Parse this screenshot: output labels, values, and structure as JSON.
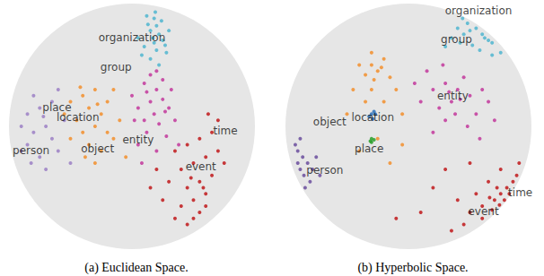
{
  "chart_data": [
    {
      "type": "scatter",
      "title": "(a) Euclidean Space.",
      "xlim": [
        -1,
        1
      ],
      "ylim": [
        -1,
        1
      ],
      "tick_labels": false,
      "grid": false,
      "series": [
        {
          "color": "#4fb5cf",
          "values": [
            [
              0.12,
              0.9
            ],
            [
              0.18,
              0.88
            ],
            [
              0.2,
              0.82
            ],
            [
              0.15,
              0.78
            ],
            [
              0.22,
              0.75
            ],
            [
              0.25,
              0.7
            ],
            [
              0.18,
              0.68
            ],
            [
              0.1,
              0.65
            ],
            [
              0.2,
              0.62
            ],
            [
              0.28,
              0.6
            ],
            [
              0.15,
              0.55
            ],
            [
              0.22,
              0.5
            ],
            [
              0.08,
              0.58
            ],
            [
              0.3,
              0.78
            ],
            [
              0.05,
              0.72
            ],
            [
              0.24,
              0.86
            ],
            [
              0.13,
              0.83
            ],
            [
              0.27,
              0.66
            ],
            [
              0.17,
              0.72
            ],
            [
              0.19,
              0.93
            ]
          ]
        },
        {
          "color": "#c2379b",
          "values": [
            [
              0.1,
              0.35
            ],
            [
              0.2,
              0.3
            ],
            [
              0.15,
              0.2
            ],
            [
              0.25,
              0.22
            ],
            [
              0.05,
              0.15
            ],
            [
              0.18,
              0.1
            ],
            [
              0.3,
              0.15
            ],
            [
              0.1,
              0.05
            ],
            [
              0.22,
              0.02
            ],
            [
              0.35,
              0.05
            ],
            [
              0.12,
              -0.05
            ],
            [
              0.28,
              -0.08
            ],
            [
              0.05,
              -0.15
            ],
            [
              0.2,
              -0.2
            ],
            [
              0.15,
              0.42
            ],
            [
              0.32,
              0.3
            ],
            [
              0.0,
              0.25
            ],
            [
              0.38,
              -0.15
            ],
            [
              0.25,
              0.38
            ],
            [
              0.08,
              -0.3
            ],
            [
              0.2,
              0.45
            ],
            [
              0.12,
              0.28
            ],
            [
              0.27,
              0.12
            ],
            [
              0.02,
              0.05
            ]
          ]
        },
        {
          "color": "#c0181a",
          "values": [
            [
              0.35,
              -0.2
            ],
            [
              0.45,
              -0.15
            ],
            [
              0.55,
              -0.1
            ],
            [
              0.65,
              -0.05
            ],
            [
              0.7,
              0.05
            ],
            [
              0.4,
              -0.35
            ],
            [
              0.5,
              -0.3
            ],
            [
              0.6,
              -0.25
            ],
            [
              0.7,
              -0.2
            ],
            [
              0.3,
              -0.45
            ],
            [
              0.45,
              -0.5
            ],
            [
              0.55,
              -0.45
            ],
            [
              0.65,
              -0.4
            ],
            [
              0.5,
              -0.6
            ],
            [
              0.6,
              -0.55
            ],
            [
              0.4,
              -0.65
            ],
            [
              0.55,
              -0.7
            ],
            [
              0.45,
              -0.8
            ],
            [
              0.35,
              -0.75
            ],
            [
              0.25,
              -0.6
            ],
            [
              0.75,
              -0.3
            ],
            [
              0.2,
              -0.35
            ],
            [
              0.6,
              -0.65
            ],
            [
              0.5,
              -0.75
            ],
            [
              0.48,
              -0.42
            ],
            [
              0.58,
              -0.5
            ],
            [
              0.15,
              -0.5
            ],
            [
              0.62,
              0.1
            ]
          ]
        },
        {
          "color": "#f28e2b",
          "values": [
            [
              -0.5,
              0.2
            ],
            [
              -0.4,
              0.25
            ],
            [
              -0.3,
              0.3
            ],
            [
              -0.35,
              0.15
            ],
            [
              -0.25,
              0.1
            ],
            [
              -0.45,
              0.05
            ],
            [
              -0.3,
              0.0
            ],
            [
              -0.2,
              -0.05
            ],
            [
              -0.4,
              -0.05
            ],
            [
              -0.35,
              -0.15
            ],
            [
              -0.25,
              -0.2
            ],
            [
              -0.15,
              -0.1
            ],
            [
              -0.1,
              0.05
            ],
            [
              -0.5,
              -0.1
            ],
            [
              -0.2,
              0.2
            ],
            [
              -0.3,
              -0.3
            ],
            [
              -0.15,
              0.3
            ],
            [
              -0.55,
              0.1
            ],
            [
              -0.05,
              -0.25
            ],
            [
              -0.42,
              0.32
            ],
            [
              -0.28,
              0.18
            ],
            [
              -0.38,
              -0.25
            ]
          ]
        },
        {
          "color": "#9b7fc4",
          "values": [
            [
              -0.9,
              0.0
            ],
            [
              -0.85,
              0.1
            ],
            [
              -0.8,
              -0.05
            ],
            [
              -0.75,
              0.15
            ],
            [
              -0.7,
              0.0
            ],
            [
              -0.65,
              -0.1
            ],
            [
              -0.85,
              -0.15
            ],
            [
              -0.75,
              -0.25
            ],
            [
              -0.65,
              0.2
            ],
            [
              -0.6,
              -0.2
            ],
            [
              -0.9,
              -0.2
            ],
            [
              -0.55,
              0.05
            ],
            [
              -0.7,
              -0.35
            ],
            [
              -0.8,
              0.25
            ],
            [
              -0.6,
              0.3
            ],
            [
              -0.5,
              -0.3
            ],
            [
              -0.72,
              0.08
            ],
            [
              -0.82,
              -0.3
            ]
          ]
        }
      ],
      "annotations": [
        {
          "text": "organization",
          "x": 0.0,
          "y": 0.72
        },
        {
          "text": "group",
          "x": -0.13,
          "y": 0.48
        },
        {
          "text": "place",
          "x": -0.61,
          "y": 0.15
        },
        {
          "text": "location",
          "x": -0.44,
          "y": 0.07
        },
        {
          "text": "object",
          "x": -0.28,
          "y": -0.18
        },
        {
          "text": "person",
          "x": -0.82,
          "y": -0.2
        },
        {
          "text": "entity",
          "x": 0.05,
          "y": -0.11
        },
        {
          "text": "time",
          "x": 0.76,
          "y": -0.04
        },
        {
          "text": "event",
          "x": 0.56,
          "y": -0.33
        }
      ]
    },
    {
      "type": "scatter",
      "title": "(b) Hyperbolic Space.",
      "xlim": [
        -1,
        1
      ],
      "ylim": [
        -1,
        1
      ],
      "tick_labels": false,
      "grid": false,
      "series": [
        {
          "color": "#4fb5cf",
          "values": [
            [
              0.75,
              0.6
            ],
            [
              0.68,
              0.68
            ],
            [
              0.65,
              0.7
            ],
            [
              0.6,
              0.75
            ],
            [
              0.55,
              0.8
            ],
            [
              0.5,
              0.78
            ],
            [
              0.62,
              0.72
            ],
            [
              0.45,
              0.75
            ],
            [
              0.4,
              0.8
            ],
            [
              0.35,
              0.72
            ],
            [
              0.3,
              0.65
            ],
            [
              0.52,
              0.66
            ],
            [
              0.48,
              0.84
            ],
            [
              0.58,
              0.62
            ],
            [
              0.68,
              0.58
            ],
            [
              0.42,
              0.68
            ],
            [
              0.44,
              0.88
            ]
          ]
        },
        {
          "color": "#f28e2b",
          "values": [
            [
              -0.3,
              0.5
            ],
            [
              -0.25,
              0.45
            ],
            [
              -0.35,
              0.42
            ],
            [
              -0.2,
              0.55
            ],
            [
              -0.28,
              0.38
            ],
            [
              -0.15,
              0.4
            ],
            [
              -0.4,
              0.5
            ],
            [
              -0.3,
              0.6
            ],
            [
              -0.1,
              0.3
            ],
            [
              -0.45,
              0.3
            ],
            [
              -0.2,
              0.2
            ],
            [
              -0.35,
              0.2
            ],
            [
              -0.05,
              0.1
            ],
            [
              -0.5,
              0.1
            ],
            [
              -0.25,
              -0.1
            ],
            [
              -0.15,
              -0.3
            ],
            [
              -0.4,
              -0.2
            ],
            [
              -0.05,
              -0.15
            ],
            [
              -0.3,
              0.3
            ],
            [
              -0.22,
              0.48
            ]
          ]
        },
        {
          "color": "#2a6fb8",
          "values": [
            [
              -0.3,
              0.1
            ],
            [
              -0.28,
              0.12
            ],
            [
              -0.32,
              0.08
            ],
            [
              -0.29,
              0.06
            ],
            [
              -0.27,
              0.1
            ]
          ]
        },
        {
          "color": "#2ca02c",
          "values": [
            [
              -0.3,
              -0.1
            ],
            [
              -0.31,
              -0.12
            ],
            [
              -0.28,
              -0.11
            ],
            [
              -0.3,
              -0.13
            ]
          ]
        },
        {
          "color": "#6a4c9c",
          "values": [
            [
              -0.9,
              -0.3
            ],
            [
              -0.88,
              -0.35
            ],
            [
              -0.85,
              -0.4
            ],
            [
              -0.9,
              -0.2
            ],
            [
              -0.86,
              -0.25
            ],
            [
              -0.8,
              -0.45
            ],
            [
              -0.82,
              -0.3
            ],
            [
              -0.92,
              -0.15
            ],
            [
              -0.78,
              -0.35
            ],
            [
              -0.75,
              -0.25
            ],
            [
              -0.84,
              -0.5
            ],
            [
              -0.72,
              -0.4
            ],
            [
              -0.88,
              -0.1
            ]
          ]
        },
        {
          "color": "#c2379b",
          "values": [
            [
              0.2,
              0.3
            ],
            [
              0.3,
              0.35
            ],
            [
              0.4,
              0.3
            ],
            [
              0.35,
              0.2
            ],
            [
              0.25,
              0.15
            ],
            [
              0.5,
              0.25
            ],
            [
              0.45,
              0.4
            ],
            [
              0.15,
              0.45
            ],
            [
              0.3,
              0.05
            ],
            [
              0.55,
              0.1
            ],
            [
              0.6,
              0.3
            ],
            [
              0.1,
              0.2
            ],
            [
              0.38,
              0.1
            ],
            [
              0.48,
              0.0
            ],
            [
              0.2,
              -0.05
            ],
            [
              0.65,
              0.2
            ],
            [
              0.28,
              0.5
            ],
            [
              0.05,
              0.35
            ],
            [
              0.42,
              0.22
            ],
            [
              0.33,
              0.28
            ],
            [
              0.58,
              -0.1
            ],
            [
              0.7,
              0.05
            ]
          ]
        },
        {
          "color": "#c0181a",
          "values": [
            [
              0.8,
              -0.5
            ],
            [
              0.85,
              -0.45
            ],
            [
              0.82,
              -0.55
            ],
            [
              0.75,
              -0.55
            ],
            [
              0.78,
              -0.6
            ],
            [
              0.7,
              -0.6
            ],
            [
              0.72,
              -0.5
            ],
            [
              0.68,
              -0.68
            ],
            [
              0.6,
              -0.65
            ],
            [
              0.88,
              -0.4
            ],
            [
              0.65,
              -0.45
            ],
            [
              0.55,
              -0.55
            ],
            [
              0.5,
              -0.7
            ],
            [
              0.45,
              -0.8
            ],
            [
              0.6,
              -0.75
            ],
            [
              0.4,
              -0.6
            ],
            [
              0.35,
              -0.85
            ],
            [
              0.2,
              -0.5
            ],
            [
              0.1,
              -0.7
            ],
            [
              -0.1,
              -0.75
            ],
            [
              0.3,
              -0.35
            ],
            [
              0.75,
              -0.35
            ],
            [
              0.9,
              -0.3
            ],
            [
              0.5,
              -0.3
            ],
            [
              0.66,
              -0.58
            ],
            [
              0.74,
              -0.64
            ]
          ]
        }
      ],
      "annotations": [
        {
          "text": "organization",
          "x": 0.57,
          "y": 0.94
        },
        {
          "text": "group",
          "x": 0.39,
          "y": 0.71
        },
        {
          "text": "entity",
          "x": 0.36,
          "y": 0.25
        },
        {
          "text": "location",
          "x": -0.29,
          "y": 0.07
        },
        {
          "text": "object",
          "x": -0.64,
          "y": 0.04
        },
        {
          "text": "place",
          "x": -0.32,
          "y": -0.18
        },
        {
          "text": "person",
          "x": -0.68,
          "y": -0.36
        },
        {
          "text": "event",
          "x": 0.61,
          "y": -0.69
        },
        {
          "text": "time",
          "x": 0.91,
          "y": -0.54
        }
      ]
    }
  ]
}
